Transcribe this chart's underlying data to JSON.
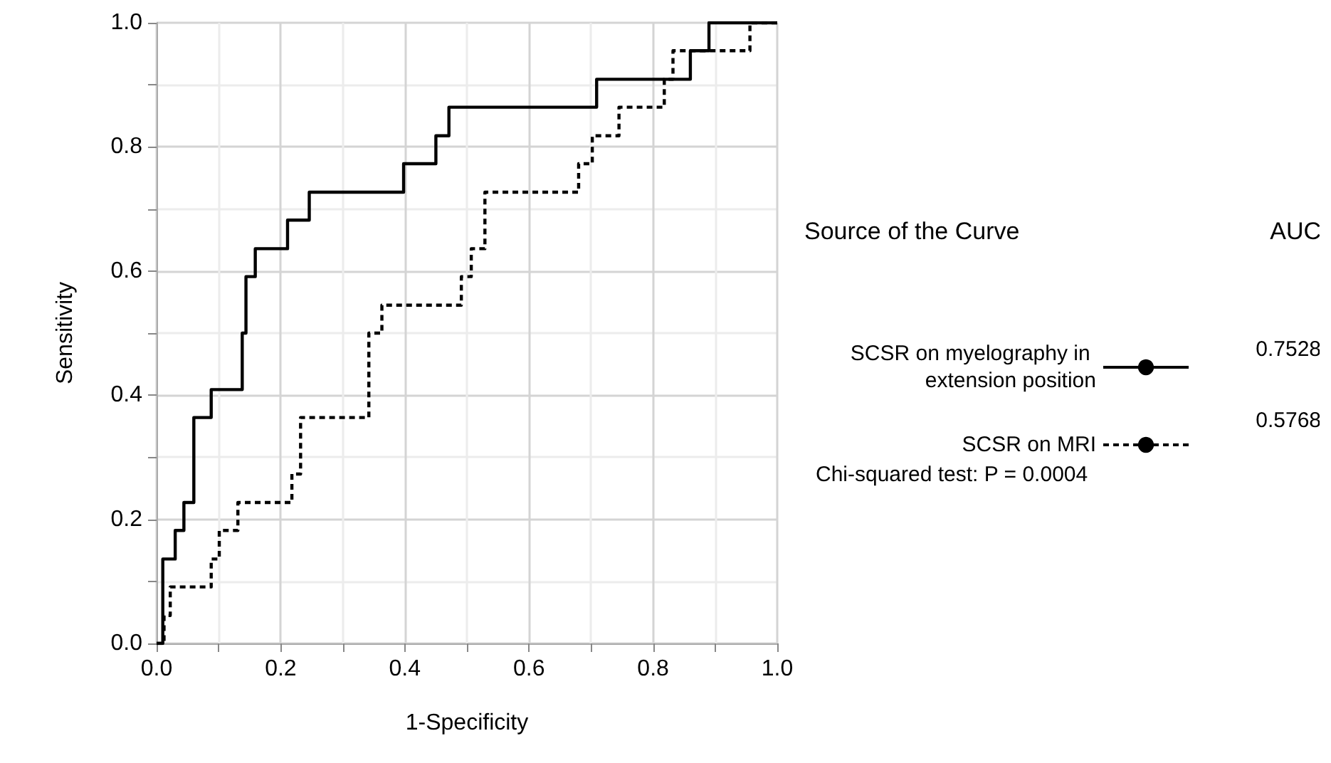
{
  "chart_data": {
    "type": "step",
    "xlabel": "1-Specificity",
    "ylabel": "Sensitivity",
    "legend_title": "Source of the Curve",
    "legend": "right",
    "grid": true,
    "marker": "none",
    "xlim": [
      0,
      1
    ],
    "ylim": [
      0,
      1
    ],
    "xticks": [
      {
        "value": 0,
        "label": "0.0"
      },
      {
        "value": 0.1,
        "label": null
      },
      {
        "value": 0.2,
        "label": "0.2"
      },
      {
        "value": 0.3,
        "label": null
      },
      {
        "value": 0.4,
        "label": "0.4"
      },
      {
        "value": 0.5,
        "label": null
      },
      {
        "value": 0.6,
        "label": "0.6"
      },
      {
        "value": 0.7,
        "label": null
      },
      {
        "value": 0.8,
        "label": "0.8"
      },
      {
        "value": 0.9,
        "label": null
      },
      {
        "value": 1,
        "label": "1.0"
      }
    ],
    "yticks": [
      {
        "value": 0,
        "label": "0.0"
      },
      {
        "value": 0.1,
        "label": null
      },
      {
        "value": 0.2,
        "label": "0.2"
      },
      {
        "value": 0.3,
        "label": null
      },
      {
        "value": 0.4,
        "label": "0.4"
      },
      {
        "value": 0.5,
        "label": null
      },
      {
        "value": 0.6,
        "label": "0.6"
      },
      {
        "value": 0.7,
        "label": null
      },
      {
        "value": 0.8,
        "label": "0.8"
      },
      {
        "value": 0.9,
        "label": null
      },
      {
        "value": 1,
        "label": "1.0"
      }
    ],
    "series": [
      {
        "name": "SCSR on myelography in extension position",
        "color": "#000000",
        "line_style": "solid",
        "x": [
          0,
          0.01,
          0.03,
          0.044,
          0.06,
          0.088,
          0.138,
          0.144,
          0.159,
          0.211,
          0.246,
          0.398,
          0.45,
          0.471,
          0.709,
          0.86,
          0.89,
          1
        ],
        "values": [
          0,
          0.136,
          0.182,
          0.227,
          0.364,
          0.409,
          0.5,
          0.591,
          0.636,
          0.682,
          0.727,
          0.773,
          0.818,
          0.864,
          0.909,
          0.955,
          1,
          1
        ]
      },
      {
        "name": "SCSR on MRI",
        "color": "#000000",
        "line_style": "dashed",
        "x": [
          0,
          0.012,
          0.022,
          0.088,
          0.101,
          0.131,
          0.218,
          0.232,
          0.342,
          0.363,
          0.491,
          0.507,
          0.529,
          0.68,
          0.702,
          0.745,
          0.818,
          0.832,
          0.956,
          1
        ],
        "values": [
          0,
          0.045,
          0.091,
          0.136,
          0.182,
          0.227,
          0.273,
          0.364,
          0.5,
          0.545,
          0.591,
          0.636,
          0.727,
          0.773,
          0.818,
          0.864,
          0.909,
          0.955,
          1,
          1
        ]
      }
    ],
    "annotations": [
      "AUC",
      "0.7528",
      "0.5768",
      "Chi-squared test: P = 0.0004"
    ]
  }
}
